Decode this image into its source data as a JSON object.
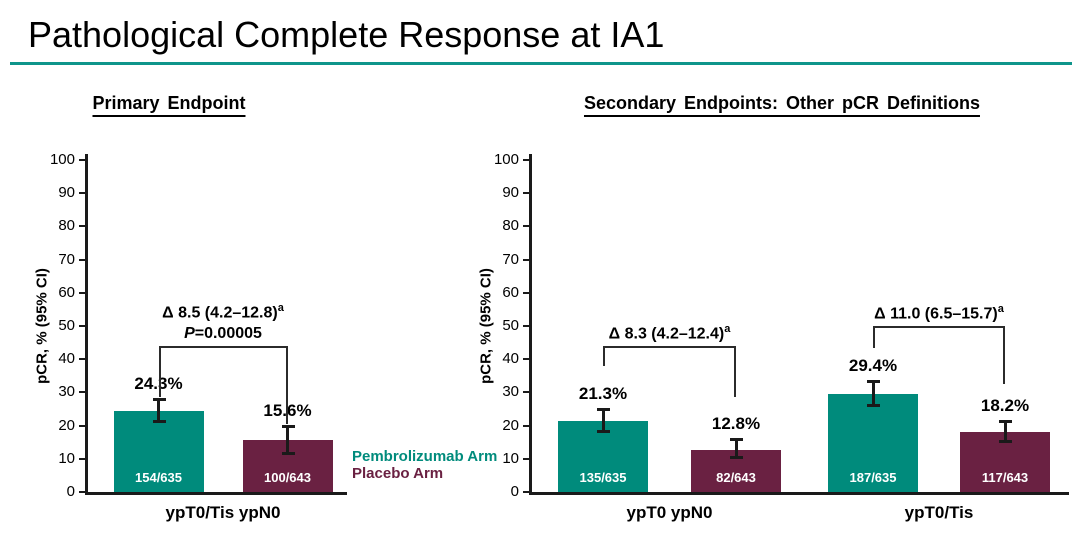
{
  "title": "Pathological Complete Response at IA1",
  "colors": {
    "teal": "#008B7C",
    "maroon": "#6A2142",
    "divider_teal": "#0E958B",
    "axis_black": "#1a1a1a"
  },
  "legend": {
    "items": [
      {
        "label": "Pembrolizumab Arm",
        "color": "#008B7C"
      },
      {
        "label": "Placebo Arm",
        "color": "#6A2142"
      }
    ]
  },
  "chart_data": [
    {
      "type": "bar",
      "title": "Primary Endpoint",
      "ylabel": "pCR, % (95% CI)",
      "ylim": [
        0,
        100
      ],
      "ytick_step": 10,
      "ytick_labels": [
        "0",
        "10",
        "20",
        "30",
        "40",
        "50",
        "60",
        "70",
        "80",
        "90",
        "100"
      ],
      "grid": false,
      "legend_position": "right-of-plot-text-only",
      "categories": [
        "ypT0/Tis ypN0"
      ],
      "series": [
        {
          "name": "Pembrolizumab Arm",
          "values": [
            24.3
          ]
        },
        {
          "name": "Placebo Arm",
          "values": [
            15.6
          ]
        }
      ],
      "bars": [
        {
          "series": "Pembrolizumab Arm",
          "category": "ypT0/Tis ypN0",
          "value": 24.3,
          "value_label": "24.3%",
          "count_label": "154/635",
          "ci_low": 21.0,
          "ci_high": 28.0
        },
        {
          "series": "Placebo Arm",
          "category": "ypT0/Tis ypN0",
          "value": 15.6,
          "value_label": "15.6%",
          "count_label": "100/643",
          "ci_low": 11.5,
          "ci_high": 20.0
        }
      ],
      "comparisons": [
        {
          "between": [
            0,
            1
          ],
          "delta_label": "Δ 8.5 (4.2–12.8)",
          "delta_sup": "a",
          "p_italic": "P",
          "p_rest": "=0.00005",
          "bracket_top": 44,
          "left_leg_end": 28.5,
          "right_leg_end": 20.5
        }
      ]
    },
    {
      "type": "bar",
      "title": "Secondary Endpoints: Other pCR Definitions",
      "ylabel": "pCR, % (95% CI)",
      "ylim": [
        0,
        100
      ],
      "ytick_step": 10,
      "ytick_labels": [
        "0",
        "10",
        "20",
        "30",
        "40",
        "50",
        "60",
        "70",
        "80",
        "90",
        "100"
      ],
      "grid": false,
      "categories": [
        "ypT0 ypN0",
        "ypT0/Tis"
      ],
      "series": [
        {
          "name": "Pembrolizumab Arm",
          "values": [
            21.3,
            29.4
          ]
        },
        {
          "name": "Placebo Arm",
          "values": [
            12.8,
            18.2
          ]
        }
      ],
      "bars": [
        {
          "series": "Pembrolizumab Arm",
          "category": "ypT0 ypN0",
          "value": 21.3,
          "value_label": "21.3%",
          "count_label": "135/635",
          "ci_low": 18.0,
          "ci_high": 25.0
        },
        {
          "series": "Placebo Arm",
          "category": "ypT0 ypN0",
          "value": 12.8,
          "value_label": "12.8%",
          "count_label": "82/643",
          "ci_low": 10.3,
          "ci_high": 16.0
        },
        {
          "series": "Pembrolizumab Arm",
          "category": "ypT0/Tis",
          "value": 29.4,
          "value_label": "29.4%",
          "count_label": "187/635",
          "ci_low": 26.0,
          "ci_high": 33.3
        },
        {
          "series": "Placebo Arm",
          "category": "ypT0/Tis",
          "value": 18.2,
          "value_label": "18.2%",
          "count_label": "117/643",
          "ci_low": 15.2,
          "ci_high": 21.5
        }
      ],
      "comparisons": [
        {
          "between": [
            0,
            1
          ],
          "delta_label": "Δ 8.3 (4.2–12.4)",
          "delta_sup": "a",
          "bracket_top": 44,
          "left_leg_end": 38,
          "right_leg_end": 28.5
        },
        {
          "between": [
            2,
            3
          ],
          "delta_label": "Δ 11.0 (6.5–15.7)",
          "delta_sup": "a",
          "bracket_top": 50,
          "left_leg_end": 43.5,
          "right_leg_end": 32.5
        }
      ]
    }
  ]
}
